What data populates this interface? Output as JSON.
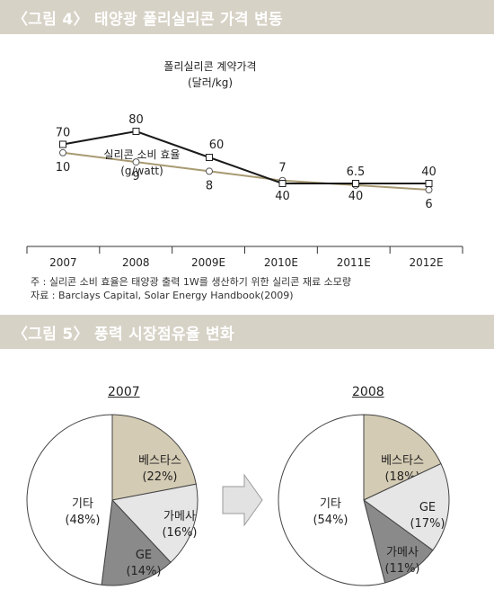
{
  "figure4": {
    "title": "〈그림 4〉 태양광 폴리실리콘 가격 변동",
    "note": "주 : 실리콘 소비 효율은 태양광 출력 1W를 생산하기 위한 실리콘 재료 소모량",
    "source": "자료 : Barclays Capital, Solar Energy Handbook(2009)"
  },
  "figure5": {
    "title": "〈그림 5〉 풍력 시장점유율 변화",
    "left_year": "2007",
    "right_year": "2008"
  },
  "chart_data": [
    {
      "type": "line",
      "categories": [
        "2007",
        "2008",
        "2009E",
        "2010E",
        "2011E",
        "2012E"
      ],
      "series": [
        {
          "name": "폴리실리콘 계약가격 (달러/kg)",
          "name_line1": "폴리실리콘 계약가격",
          "name_line2": "(달러/kg)",
          "values": [
            70,
            80,
            60,
            40,
            40,
            40
          ],
          "labels": [
            "70",
            "80",
            "60",
            "40",
            "40",
            "40"
          ],
          "color": "#1a1a1a"
        },
        {
          "name": "실리콘 소비 효율 (g/watt)",
          "name_line1": "실리콘 소비 효율",
          "name_line2": "(g/watt)",
          "values": [
            10,
            9,
            8,
            7,
            6.5,
            6
          ],
          "labels": [
            "10",
            "9",
            "8",
            "7",
            "6.5",
            "6"
          ],
          "color": "#a89a72"
        }
      ]
    },
    {
      "type": "pie",
      "title": "2007",
      "slices": [
        {
          "label": "베스타스",
          "value": 22,
          "pct": "(22%)",
          "color": "#d4cbb4"
        },
        {
          "label": "가메사",
          "value": 16,
          "pct": "(16%)",
          "color": "#e6e6e6"
        },
        {
          "label": "GE",
          "value": 14,
          "pct": "(14%)",
          "color": "#8a8a8a"
        },
        {
          "label": "기타",
          "value": 48,
          "pct": "(48%)",
          "color": "#ffffff"
        }
      ]
    },
    {
      "type": "pie",
      "title": "2008",
      "slices": [
        {
          "label": "베스타스",
          "value": 18,
          "pct": "(18%)",
          "color": "#d4cbb4"
        },
        {
          "label": "GE",
          "value": 17,
          "pct": "(17%)",
          "color": "#e6e6e6"
        },
        {
          "label": "가메사",
          "value": 11,
          "pct": "(11%)",
          "color": "#8a8a8a"
        },
        {
          "label": "기타",
          "value": 54,
          "pct": "(54%)",
          "color": "#ffffff"
        }
      ]
    }
  ]
}
